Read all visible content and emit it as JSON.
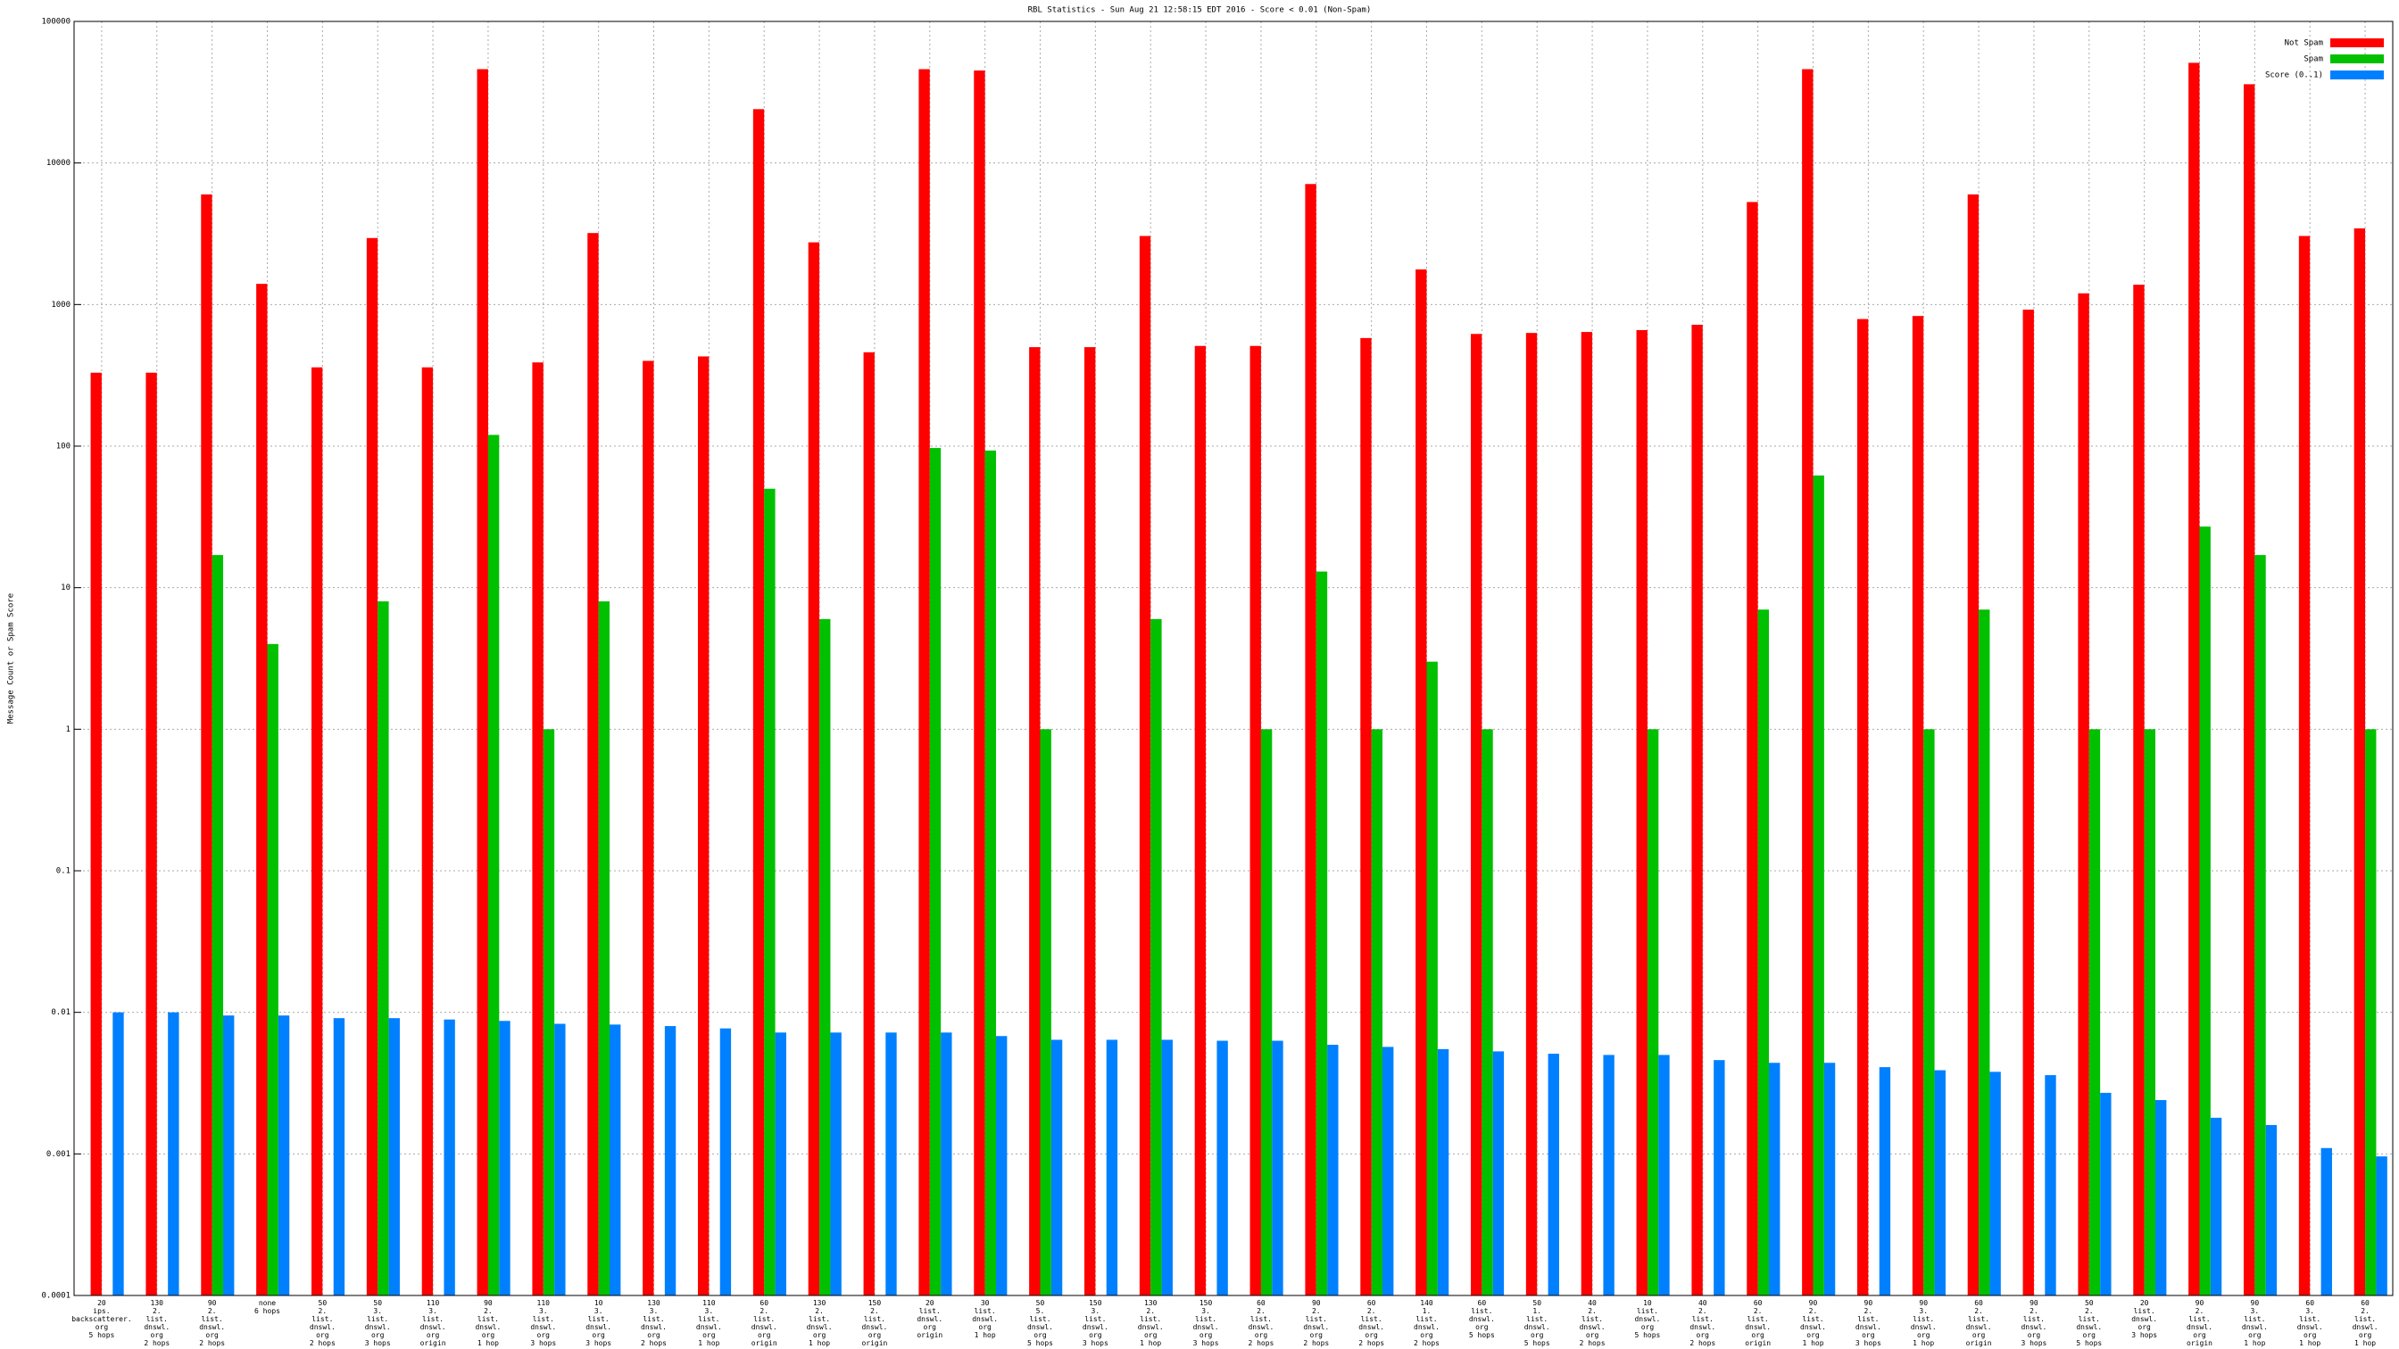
{
  "chart_data": {
    "type": "bar",
    "title": "RBL Statistics - Sun Aug 21 12:58:15 EDT 2016 - Score < 0.01 (Non-Spam)",
    "y_label": "Message Count or Spam Score",
    "categories": [
      "20\nips.\nbackscatterer.\norg\n5 hops",
      "130\n2.\nlist.\ndnswl.\norg\n2 hops",
      "90\n2.\nlist.\ndnswl.\norg\n2 hops",
      "none\n6 hops",
      "50\n2.\nlist.\ndnswl.\norg\n2 hops",
      "50\n3.\nlist.\ndnswl.\norg\n3 hops",
      "110\n3.\nlist.\ndnswl.\norg\norigin",
      "90\n2.\nlist.\ndnswl.\norg\n1 hop",
      "110\n3.\nlist.\ndnswl.\norg\n3 hops",
      "10\n3.\nlist.\ndnswl.\norg\n3 hops",
      "130\n3.\nlist.\ndnswl.\norg\n2 hops",
      "110\n3.\nlist.\ndnswl.\norg\n1 hop",
      "60\n2.\nlist.\ndnswl.\norg\norigin",
      "130\n2.\nlist.\ndnswl.\norg\n1 hop",
      "150\n2.\nlist.\ndnswl.\norg\norigin",
      "20\nlist.\ndnswl.\norg\norigin",
      "30\nlist.\ndnswl.\norg\n1 hop",
      "50\n5.\nlist.\ndnswl.\norg\n5 hops",
      "150\n3.\nlist.\ndnswl.\norg\n3 hops",
      "130\n2.\nlist.\ndnswl.\norg\n1 hop",
      "150\n3.\nlist.\ndnswl.\norg\n3 hops",
      "60\n2.\nlist.\ndnswl.\norg\n2 hops",
      "90\n2.\nlist.\ndnswl.\norg\n2 hops",
      "60\n2.\nlist.\ndnswl.\norg\n2 hops",
      "140\n1.\nlist.\ndnswl.\norg\n2 hops",
      "60\nlist.\ndnswl.\norg\n5 hops",
      "50\n1.\nlist.\ndnswl.\norg\n5 hops",
      "40\n2.\nlist.\ndnswl.\norg\n2 hops",
      "10\nlist.\ndnswl.\norg\n5 hops",
      "40\n2.\nlist.\ndnswl.\norg\n2 hops",
      "60\n2.\nlist.\ndnswl.\norg\norigin",
      "90\n2.\nlist.\ndnswl.\norg\n1 hop",
      "90\n2.\nlist.\ndnswl.\norg\n3 hops",
      "90\n3.\nlist.\ndnswl.\norg\n1 hop",
      "60\n2.\nlist.\ndnswl.\norg\norigin",
      "90\n2.\nlist.\ndnswl.\norg\n3 hops",
      "50\n2.\nlist.\ndnswl.\norg\n5 hops",
      "20\nlist.\ndnswl.\norg\n3 hops",
      "90\n2.\nlist.\ndnswl.\norg\norigin",
      "90\n3.\nlist.\ndnswl.\norg\n1 hop",
      "60\n3.\nlist.\ndnswl.\norg\n1 hop",
      "60\n2.\nlist.\ndnswl.\norg\n1 hop"
    ],
    "series": [
      {
        "name": "Not Spam",
        "color": "#ff0000",
        "values": [
          330,
          330,
          6000,
          1400,
          360,
          2950,
          360,
          46000,
          390,
          3200,
          400,
          430,
          24000,
          2750,
          460,
          46000,
          45000,
          500,
          500,
          3050,
          510,
          510,
          7100,
          580,
          1770,
          620,
          630,
          640,
          660,
          720,
          5300,
          46000,
          790,
          830,
          6000,
          920,
          1200,
          1380,
          51000,
          36000,
          3050,
          3450
        ]
      },
      {
        "name": "Spam",
        "color": "#00c000",
        "values": [
          null,
          null,
          17,
          4,
          null,
          8,
          null,
          120,
          1,
          8,
          null,
          null,
          50,
          6,
          null,
          97,
          93,
          1,
          null,
          6,
          null,
          1,
          13,
          1,
          3,
          1,
          null,
          null,
          1,
          null,
          7,
          62,
          null,
          1,
          7,
          null,
          1,
          1,
          27,
          17,
          null,
          1
        ]
      },
      {
        "name": "Score (0..1)",
        "color": "#0080ff",
        "values": [
          0.01,
          0.01,
          0.0095,
          0.0095,
          0.0091,
          0.0091,
          0.0089,
          0.0087,
          0.0083,
          0.0082,
          0.008,
          0.0077,
          0.0072,
          0.0072,
          0.0072,
          0.0072,
          0.0068,
          0.0064,
          0.0064,
          0.0064,
          0.0063,
          0.0063,
          0.0059,
          0.0057,
          0.0055,
          0.0053,
          0.0051,
          0.005,
          0.005,
          0.0046,
          0.0044,
          0.0044,
          0.0041,
          0.0039,
          0.0038,
          0.0036,
          0.0027,
          0.0024,
          0.0018,
          0.0016,
          0.0011,
          0.00096
        ]
      }
    ],
    "ylim": [
      0.0001,
      100000
    ],
    "yticks": [
      0.0001,
      0.001,
      0.01,
      0.1,
      1,
      10,
      100,
      1000,
      10000,
      100000
    ],
    "log_scale": true,
    "grid": true,
    "legend": "top-right"
  }
}
